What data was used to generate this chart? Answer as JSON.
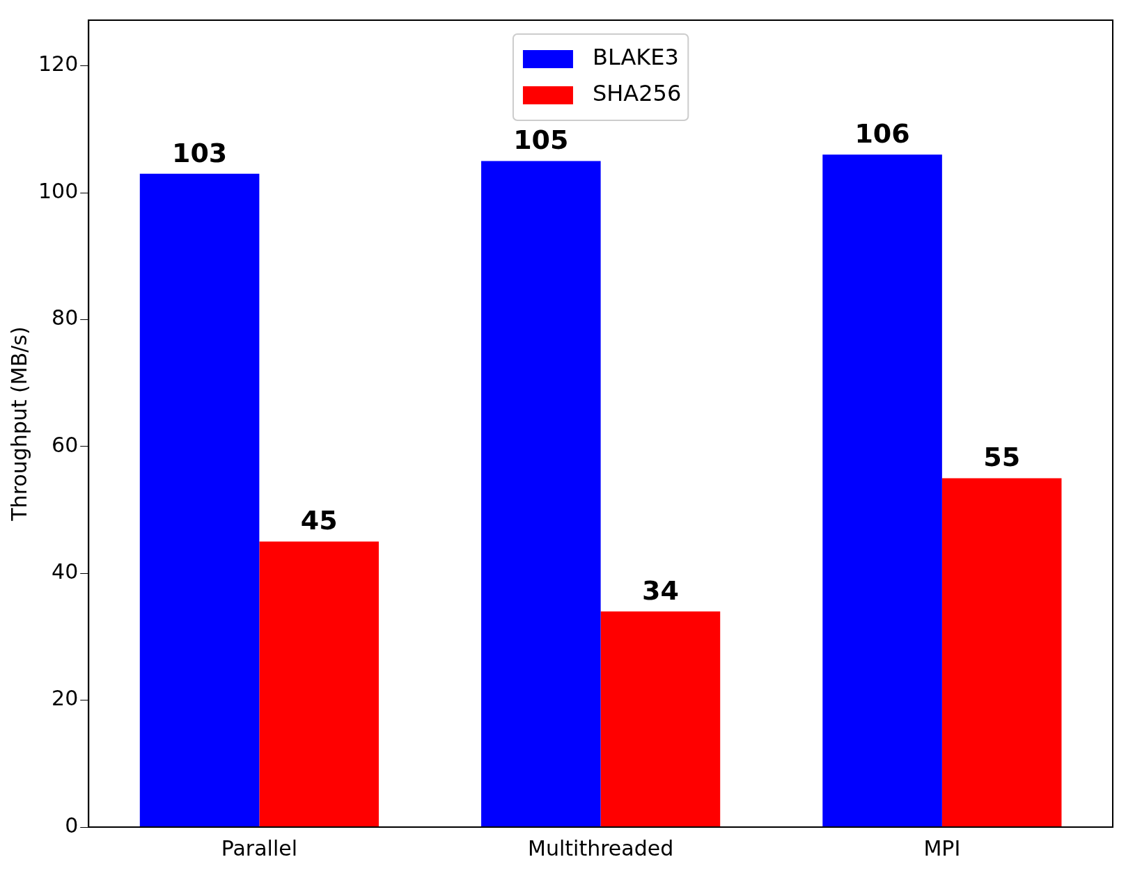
{
  "chart_data": {
    "type": "bar",
    "ylabel": "Throughput (MB/s)",
    "categories": [
      "Parallel",
      "Multithreaded",
      "MPI"
    ],
    "series": [
      {
        "name": "BLAKE3",
        "color": "#0000ff",
        "values": [
          103,
          105,
          106
        ]
      },
      {
        "name": "SHA256",
        "color": "#ff0000",
        "values": [
          45,
          34,
          55
        ]
      }
    ],
    "ylim": [
      0,
      127.2
    ],
    "yticks": [
      0,
      20,
      40,
      60,
      80,
      100,
      120
    ],
    "data_labels": true,
    "legend": "top",
    "grid": false
  }
}
